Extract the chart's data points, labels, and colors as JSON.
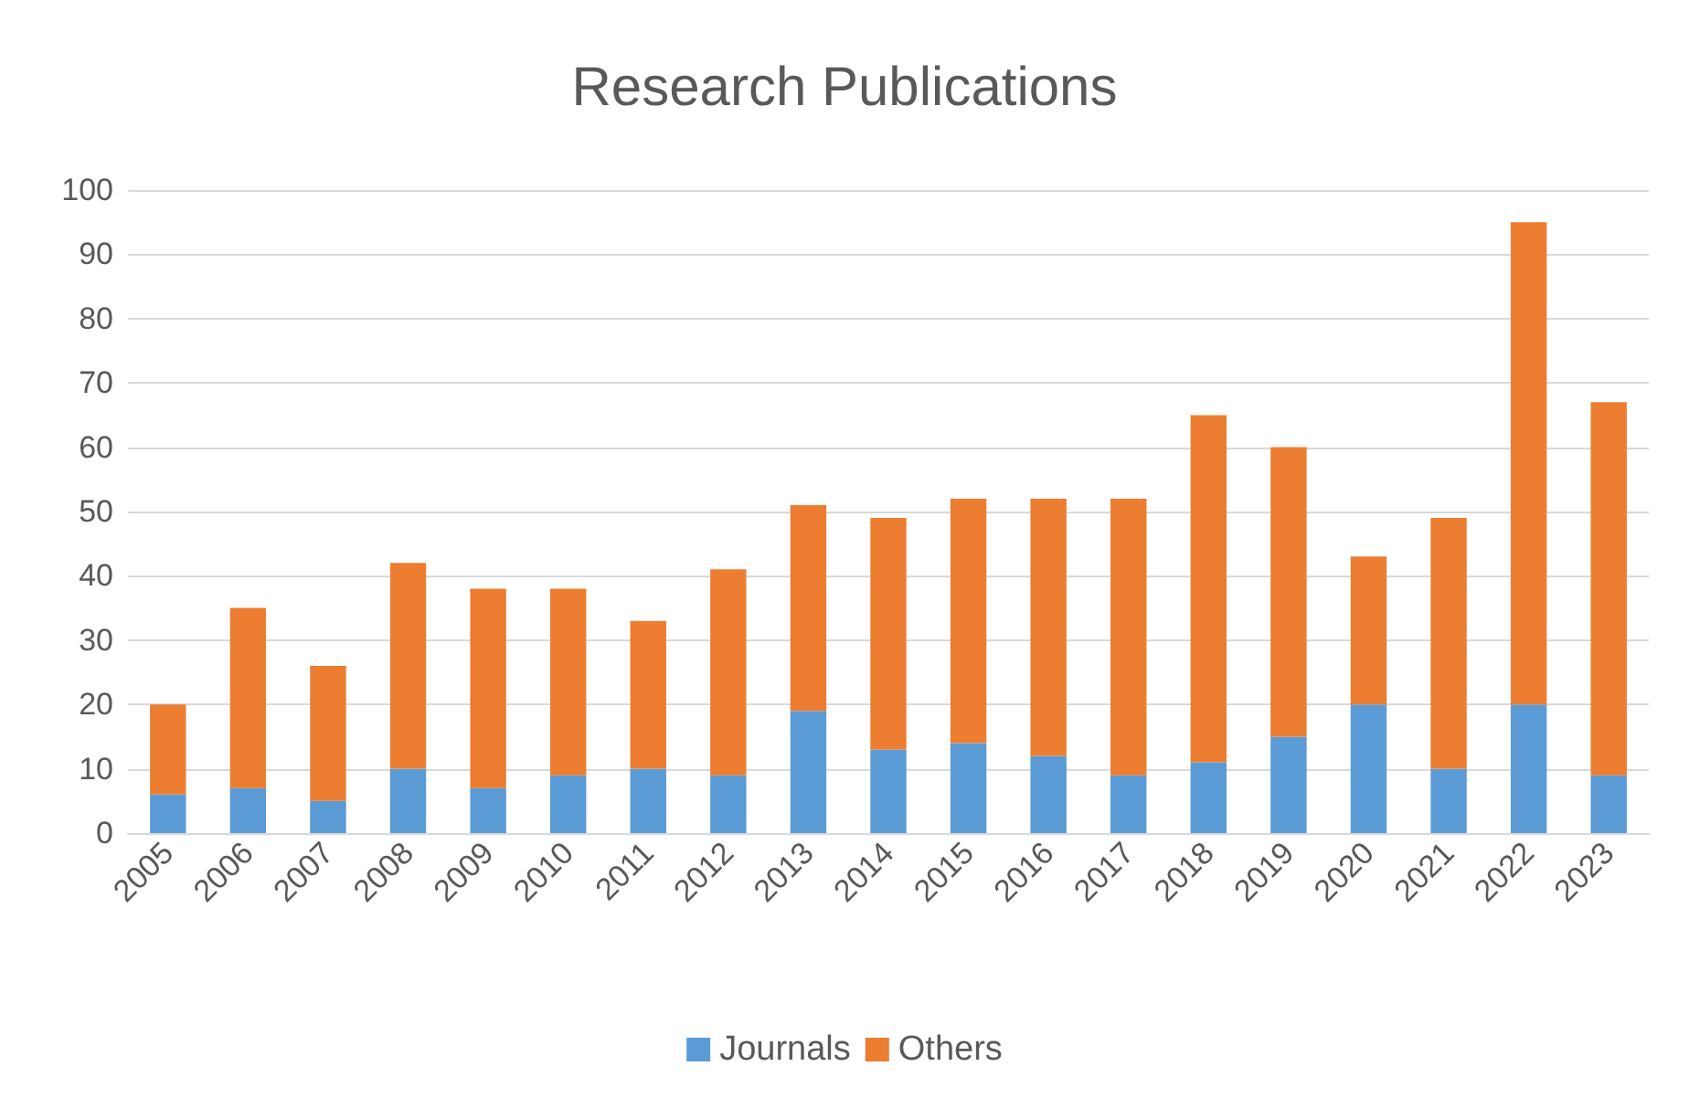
{
  "chart_data": {
    "type": "bar",
    "title": "Research Publications",
    "stacked": true,
    "categories": [
      "2005",
      "2006",
      "2007",
      "2008",
      "2009",
      "2010",
      "2011",
      "2012",
      "2013",
      "2014",
      "2015",
      "2016",
      "2017",
      "2018",
      "2019",
      "2020",
      "2021",
      "2022",
      "2023"
    ],
    "series": [
      {
        "name": "Journals",
        "color": "#5b9bd5",
        "values": [
          6,
          7,
          5,
          10,
          7,
          9,
          10,
          9,
          19,
          13,
          14,
          12,
          9,
          11,
          15,
          20,
          10,
          20,
          9
        ]
      },
      {
        "name": "Others",
        "color": "#ed7d31",
        "values": [
          14,
          28,
          21,
          32,
          31,
          29,
          23,
          32,
          32,
          36,
          38,
          40,
          43,
          54,
          45,
          23,
          39,
          75,
          58
        ]
      }
    ],
    "ylim": [
      0,
      100
    ],
    "yticks": [
      0,
      10,
      20,
      30,
      40,
      50,
      60,
      70,
      80,
      90,
      100
    ],
    "grid": "y",
    "legend": "bottom"
  }
}
